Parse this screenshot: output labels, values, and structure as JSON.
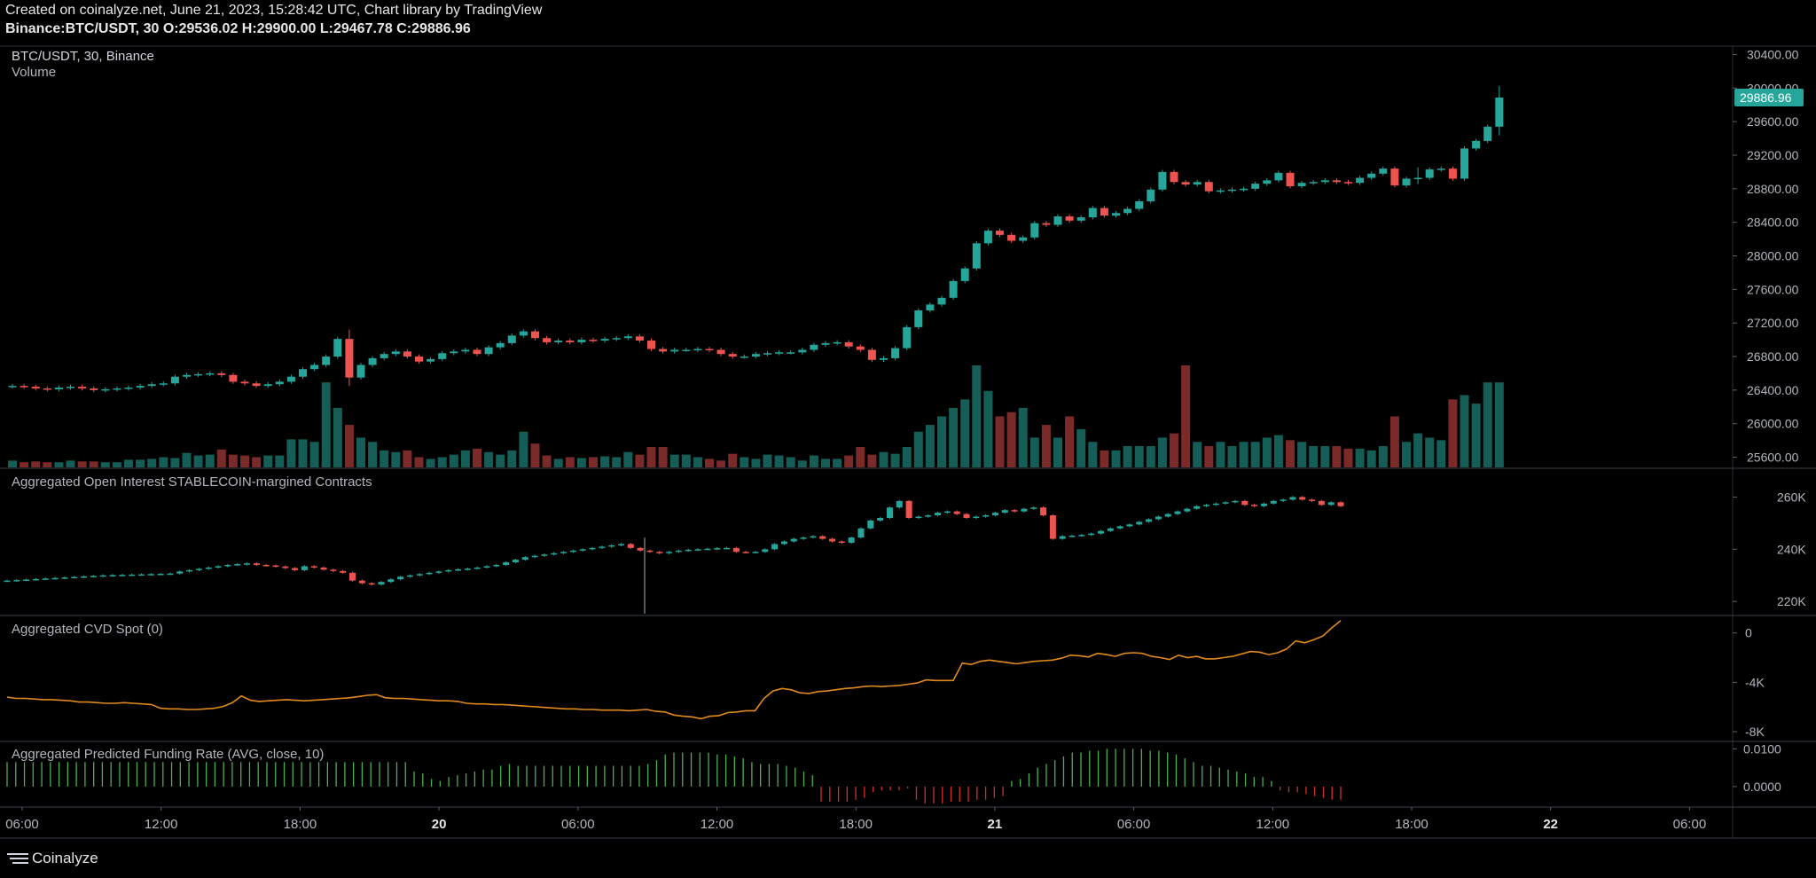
{
  "header": {
    "line1": "Created on coinalyze.net, June 21, 2023, 15:28:42 UTC, Chart library by TradingView",
    "symbol": "Binance:BTC/USDT, 30",
    "o_label": "O:",
    "o": "29536.02",
    "h_label": "H:",
    "h": "29900.00",
    "l_label": "L:",
    "l": "29467.78",
    "c_label": "C:",
    "c": "29886.96"
  },
  "footer": {
    "brand": "Coinalyze"
  },
  "colors": {
    "up": "#26a69a",
    "down": "#ef5350",
    "vol_up": "#155e57",
    "vol_down": "#7a2a28",
    "cvd": "#e08a1e",
    "fund_up": "#4caf50",
    "fund_down": "#d32f2f",
    "grid": "#2a2e39",
    "text": "#b2b5be",
    "bg": "#000000"
  },
  "chart_data": [
    {
      "type": "candlestick",
      "title": "BTC/USDT, 30, Binance",
      "subtitle": "Volume",
      "interval_minutes": 30,
      "y_ticks": [
        "30400.00",
        "30000.00",
        "29600.00",
        "29200.00",
        "28800.00",
        "28400.00",
        "28000.00",
        "27600.00",
        "27200.00",
        "26800.00",
        "26400.00",
        "26000.00",
        "25600.00"
      ],
      "ylim": [
        25500,
        30500
      ],
      "last_price": "29886.96",
      "closes": [
        26450,
        26440,
        26420,
        26410,
        26430,
        26440,
        26420,
        26400,
        26410,
        26420,
        26430,
        26450,
        26470,
        26480,
        26560,
        26580,
        26590,
        26600,
        26580,
        26500,
        26480,
        26450,
        26470,
        26500,
        26560,
        26650,
        26700,
        26800,
        27010,
        26550,
        26700,
        26780,
        26830,
        26860,
        26800,
        26740,
        26770,
        26840,
        26860,
        26880,
        26830,
        26910,
        26960,
        27050,
        27100,
        27020,
        26970,
        26990,
        26970,
        27000,
        26990,
        27010,
        27020,
        27040,
        26990,
        26890,
        26860,
        26880,
        26880,
        26890,
        26880,
        26830,
        26800,
        26800,
        26830,
        26840,
        26850,
        26850,
        26880,
        26940,
        26960,
        26970,
        26920,
        26880,
        26760,
        26780,
        26900,
        27150,
        27350,
        27420,
        27500,
        27700,
        27850,
        28150,
        28300,
        28250,
        28180,
        28220,
        28390,
        28370,
        28470,
        28420,
        28460,
        28570,
        28480,
        28510,
        28560,
        28650,
        28790,
        29000,
        28880,
        28850,
        28880,
        28770,
        28780,
        28790,
        28800,
        28860,
        28900,
        28990,
        28830,
        28870,
        28880,
        28900,
        28880,
        28870,
        28930,
        28980,
        29040,
        28840,
        28920,
        28930,
        29030,
        29040,
        28920,
        29280,
        29370,
        29540,
        29887
      ],
      "volumes": [
        8,
        6,
        7,
        6,
        6,
        8,
        7,
        7,
        6,
        6,
        9,
        9,
        10,
        12,
        11,
        17,
        14,
        15,
        21,
        15,
        14,
        12,
        14,
        14,
        33,
        33,
        30,
        100,
        70,
        50,
        35,
        30,
        20,
        18,
        20,
        12,
        10,
        12,
        15,
        20,
        22,
        18,
        15,
        20,
        42,
        28,
        14,
        10,
        12,
        11,
        12,
        13,
        12,
        18,
        15,
        24,
        24,
        15,
        15,
        12,
        10,
        8,
        16,
        12,
        10,
        15,
        14,
        12,
        8,
        14,
        10,
        10,
        14,
        24,
        15,
        18,
        16,
        24,
        42,
        50,
        60,
        70,
        80,
        120,
        90,
        60,
        65,
        70,
        35,
        50,
        35,
        60,
        45,
        30,
        20,
        20,
        25,
        25,
        25,
        35,
        40,
        120,
        30,
        25,
        30,
        25,
        30,
        30,
        35,
        38,
        32,
        30,
        25,
        25,
        25,
        22,
        22,
        20,
        25,
        60,
        30,
        40,
        35,
        32,
        80,
        85,
        75,
        100,
        100
      ],
      "wicks": [
        [
          29,
          86,
          76
        ],
        [
          121,
          100,
          40
        ],
        [
          128,
          110,
          80
        ],
        [
          148,
          55,
          70
        ]
      ]
    },
    {
      "type": "candlestick",
      "title": "Aggregated Open Interest STABLECOIN-margined Contracts",
      "y_ticks": [
        "260K",
        "240K",
        "220K"
      ],
      "ylim": [
        216000,
        270000
      ],
      "closes": [
        228000,
        228200,
        228400,
        228600,
        228800,
        229000,
        229200,
        229400,
        229600,
        229800,
        230000,
        230100,
        230200,
        230300,
        230400,
        230500,
        230600,
        230700,
        231500,
        232000,
        232500,
        233000,
        233500,
        234000,
        234300,
        234600,
        234000,
        233800,
        233400,
        232800,
        232000,
        233500,
        233000,
        232200,
        231700,
        231000,
        228000,
        227000,
        226500,
        227500,
        228500,
        229500,
        230000,
        230500,
        231000,
        231500,
        232000,
        232300,
        232600,
        233000,
        233500,
        234000,
        235000,
        236000,
        237000,
        237500,
        238000,
        238500,
        239000,
        239500,
        240000,
        240500,
        241000,
        241500,
        242000,
        240500,
        239500,
        239000,
        238500,
        239000,
        239500,
        239800,
        240000,
        240200,
        240400,
        240500,
        239000,
        238800,
        239000,
        240000,
        242000,
        243000,
        244000,
        244500,
        245000,
        244000,
        243000,
        242500,
        244500,
        248000,
        251000,
        252000,
        256000,
        258500,
        252000,
        252500,
        253000,
        254000,
        254500,
        253500,
        252000,
        252500,
        253000,
        254000,
        255000,
        254500,
        255500,
        256000,
        253000,
        244000,
        245000,
        245200,
        245500,
        246000,
        247000,
        248000,
        248800,
        249500,
        250500,
        251500,
        252500,
        253500,
        254500,
        255500,
        256500,
        257000,
        257500,
        258000,
        258500,
        257000,
        256500,
        257500,
        258500,
        259000,
        260000,
        259000,
        258500,
        257000,
        258000,
        256500
      ]
    },
    {
      "type": "line",
      "title": "Aggregated CVD Spot (0)",
      "y_ticks": [
        "0",
        "-4K",
        "-8K"
      ],
      "ylim": [
        -8500,
        1200
      ],
      "values": [
        -5200,
        -5300,
        -5300,
        -5350,
        -5400,
        -5400,
        -5450,
        -5500,
        -5600,
        -5600,
        -5650,
        -5700,
        -5700,
        -5650,
        -5700,
        -5750,
        -5800,
        -6100,
        -6150,
        -6150,
        -6200,
        -6200,
        -6150,
        -6100,
        -5950,
        -5650,
        -5100,
        -5450,
        -5550,
        -5500,
        -5450,
        -5400,
        -5450,
        -5500,
        -5450,
        -5400,
        -5350,
        -5300,
        -5250,
        -5150,
        -5050,
        -5000,
        -5250,
        -5300,
        -5300,
        -5350,
        -5400,
        -5450,
        -5500,
        -5500,
        -5550,
        -5700,
        -5750,
        -5750,
        -5800,
        -5800,
        -5850,
        -5900,
        -5950,
        -6000,
        -6050,
        -6100,
        -6150,
        -6150,
        -6200,
        -6200,
        -6250,
        -6250,
        -6250,
        -6300,
        -6250,
        -6200,
        -6350,
        -6400,
        -6650,
        -6750,
        -6800,
        -6950,
        -6750,
        -6700,
        -6450,
        -6400,
        -6300,
        -6300,
        -5300,
        -4700,
        -4500,
        -4600,
        -4850,
        -4900,
        -4750,
        -4700,
        -4600,
        -4500,
        -4450,
        -4350,
        -4300,
        -4350,
        -4300,
        -4250,
        -4150,
        -4050,
        -3800,
        -3850,
        -3850,
        -3850,
        -2450,
        -2550,
        -2300,
        -2200,
        -2300,
        -2400,
        -2500,
        -2400,
        -2300,
        -2250,
        -2200,
        -2050,
        -1800,
        -1850,
        -1950,
        -1650,
        -1750,
        -1900,
        -1650,
        -1600,
        -1650,
        -1900,
        -2000,
        -2150,
        -1800,
        -2000,
        -1900,
        -2100,
        -2100,
        -2000,
        -1900,
        -1700,
        -1500,
        -1550,
        -1750,
        -1600,
        -1300,
        -650,
        -800,
        -550,
        -250,
        400,
        1000
      ]
    },
    {
      "type": "bar",
      "title": "Aggregated Predicted Funding Rate (AVG, close, 10)",
      "y_ticks": [
        "0.0100",
        "0.0000"
      ],
      "ylim": [
        -0.0045,
        0.0115
      ],
      "values": [
        0.0065,
        0.0065,
        0.0065,
        0.0065,
        0.0065,
        0.0065,
        0.0065,
        0.0065,
        0.0065,
        0.0065,
        0.0065,
        0.0065,
        0.0065,
        0.0065,
        0.0065,
        0.0065,
        0.0065,
        0.0065,
        0.0065,
        0.0065,
        0.0065,
        0.0065,
        0.0065,
        0.0065,
        0.0065,
        0.0065,
        0.0065,
        0.0065,
        0.0065,
        0.0065,
        0.0065,
        0.0065,
        0.0065,
        0.0065,
        0.0065,
        0.0065,
        0.0065,
        0.0065,
        0.0065,
        0.0065,
        0.0065,
        0.0065,
        0.0065,
        0.0065,
        0.0065,
        0.0065,
        0.0065,
        0.004,
        0.0035,
        0.002,
        0.0015,
        0.0025,
        0.003,
        0.0035,
        0.004,
        0.0045,
        0.0045,
        0.0055,
        0.006,
        0.0055,
        0.0055,
        0.0055,
        0.0055,
        0.0055,
        0.0055,
        0.0055,
        0.0055,
        0.0055,
        0.0055,
        0.0055,
        0.0055,
        0.0055,
        0.0055,
        0.0055,
        0.006,
        0.007,
        0.0085,
        0.009,
        0.009,
        0.009,
        0.009,
        0.009,
        0.0085,
        0.0085,
        0.008,
        0.0075,
        0.0065,
        0.006,
        0.006,
        0.006,
        0.0055,
        0.005,
        0.004,
        0.003,
        -0.004,
        -0.004,
        -0.004,
        -0.004,
        -0.0035,
        -0.003,
        -0.0015,
        -0.001,
        -0.001,
        -0.001,
        -0.0005,
        -0.0035,
        -0.0045,
        -0.0045,
        -0.0045,
        -0.004,
        -0.004,
        -0.004,
        -0.0035,
        -0.0035,
        -0.003,
        -0.0025,
        0.0015,
        0.002,
        0.0035,
        0.005,
        0.006,
        0.007,
        0.008,
        0.009,
        0.009,
        0.0095,
        0.0095,
        0.01,
        0.01,
        0.01,
        0.01,
        0.01,
        0.0095,
        0.0095,
        0.009,
        0.0085,
        0.0075,
        0.0065,
        0.0055,
        0.0055,
        0.005,
        0.0045,
        0.004,
        0.0035,
        0.0025,
        0.0025,
        0.0015,
        -0.001,
        -0.0015,
        -0.0015,
        -0.002,
        -0.0025,
        -0.003,
        -0.0035,
        -0.0035
      ]
    }
  ],
  "x_axis": {
    "labels": [
      "06:00",
      "12:00",
      "18:00",
      "20",
      "06:00",
      "12:00",
      "18:00",
      "21",
      "06:00",
      "12:00",
      "18:00",
      "22",
      "06:00"
    ],
    "bold": [
      false,
      false,
      false,
      true,
      false,
      false,
      false,
      true,
      false,
      false,
      false,
      true,
      false
    ]
  }
}
